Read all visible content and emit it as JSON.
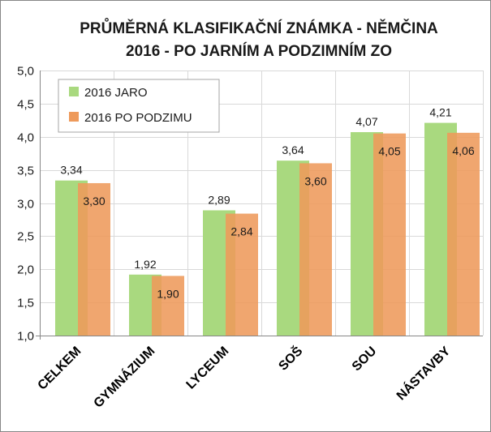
{
  "chart_data": {
    "type": "bar",
    "title_line1": "PRŮMĚRNÁ KLASIFIKAČNÍ ZNÁMKA - NĚMČINA",
    "title_line2": "2016 - PO JARNÍM A PODZIMNÍM ZO",
    "categories": [
      "CELKEM",
      "GYMNÁZIUM",
      "LYCEUM",
      "SOŠ",
      "SOU",
      "NÁSTAVBY"
    ],
    "series": [
      {
        "name": "2016 JARO",
        "color": "#a9d97f",
        "values": [
          3.34,
          1.92,
          2.89,
          3.64,
          4.07,
          4.21
        ],
        "labels": [
          "3,34",
          "1,92",
          "2,89",
          "3,64",
          "4,07",
          "4,21"
        ]
      },
      {
        "name": "2016 PO PODZIMU",
        "color": "#ee9a5b",
        "values": [
          3.3,
          1.9,
          2.84,
          3.6,
          4.05,
          4.06
        ],
        "labels": [
          "3,30",
          "1,90",
          "2,84",
          "3,60",
          "4,05",
          "4,06"
        ]
      }
    ],
    "ylim": [
      1.0,
      5.0
    ],
    "yticks": [
      "1,0",
      "1,5",
      "2,0",
      "2,5",
      "3,0",
      "3,5",
      "4,0",
      "4,5",
      "5,0"
    ],
    "ytick_values": [
      1.0,
      1.5,
      2.0,
      2.5,
      3.0,
      3.5,
      4.0,
      4.5,
      5.0
    ],
    "grid": "vertical-and-horizontal",
    "legend_position": "top-left"
  }
}
